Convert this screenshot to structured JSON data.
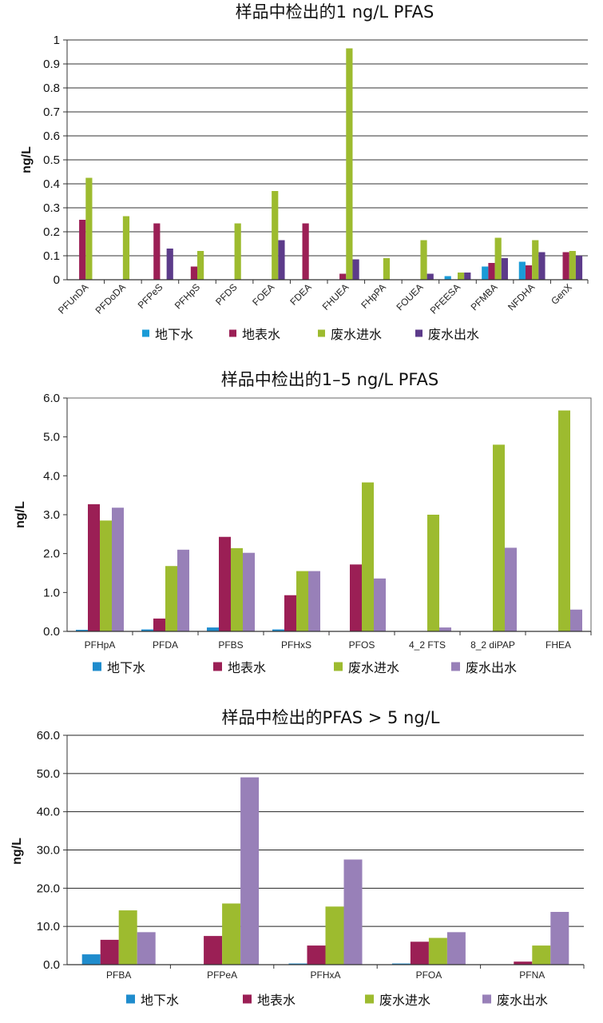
{
  "colors": {
    "groundwater_c1": "#1a9bd7",
    "groundwater": "#1f8ccd",
    "surface": "#9b1f55",
    "influent": "#9dbb2f",
    "effluent_c1": "#5c3b8a",
    "effluent": "#9880b8"
  },
  "chart_data": [
    {
      "type": "bar",
      "title": "样品中检出的1 ng/L PFAS",
      "ylabel": "ng/L",
      "ylim": [
        0,
        1
      ],
      "yticks": [
        "0",
        "0.1",
        "0.2",
        "0.3",
        "0.4",
        "0.5",
        "0.6",
        "0.7",
        "0.8",
        "0.9",
        "1"
      ],
      "grid": true,
      "legend": "bottom",
      "categories": [
        "PFUnDA",
        "PFDoDA",
        "PFPeS",
        "PFHpS",
        "PFDS",
        "FOEA",
        "FDEA",
        "FHUEA",
        "FHpPA",
        "FOUEA",
        "PFEESA",
        "PFMBA",
        "NFDHA",
        "GenX"
      ],
      "series": [
        {
          "name": "地下水",
          "values": [
            0,
            0,
            0,
            0,
            0,
            0,
            0,
            0,
            0,
            0,
            0.015,
            0.055,
            0.075,
            0
          ]
        },
        {
          "name": "地表水",
          "values": [
            0.25,
            0,
            0.235,
            0.055,
            0,
            0,
            0.235,
            0.025,
            0,
            0,
            0,
            0.07,
            0.06,
            0.115
          ]
        },
        {
          "name": "废水进水",
          "values": [
            0.425,
            0.265,
            0,
            0.12,
            0.235,
            0.37,
            0,
            0.965,
            0.09,
            0.165,
            0.03,
            0.175,
            0.165,
            0.12
          ]
        },
        {
          "name": "废水出水",
          "values": [
            0,
            0,
            0.13,
            0,
            0,
            0.165,
            0,
            0.085,
            0,
            0.025,
            0.03,
            0.09,
            0.115,
            0.1
          ]
        }
      ]
    },
    {
      "type": "bar",
      "title": "样品中检出的1–5 ng/L PFAS",
      "ylabel": "ng/L",
      "ylim": [
        0,
        6
      ],
      "yticks": [
        "0.0",
        "1.0",
        "2.0",
        "3.0",
        "4.0",
        "5.0",
        "6.0"
      ],
      "grid": false,
      "legend": "bottom",
      "categories": [
        "PFHpA",
        "PFDA",
        "PFBS",
        "PFHxS",
        "PFOS",
        "4_2 FTS",
        "8_2 diPAP",
        "FHEA"
      ],
      "series": [
        {
          "name": "地下水",
          "values": [
            0.04,
            0.05,
            0.1,
            0.05,
            0,
            0,
            0,
            0
          ]
        },
        {
          "name": "地表水",
          "values": [
            3.27,
            0.33,
            2.43,
            0.93,
            1.72,
            0,
            0,
            0
          ]
        },
        {
          "name": "废水进水",
          "values": [
            2.85,
            1.68,
            2.14,
            1.55,
            3.83,
            3.0,
            4.8,
            5.68
          ]
        },
        {
          "name": "废水出水",
          "values": [
            3.18,
            2.1,
            2.02,
            1.55,
            1.36,
            0.1,
            2.15,
            0.56
          ]
        }
      ]
    },
    {
      "type": "bar",
      "title": "样品中检出的PFAS > 5 ng/L",
      "ylabel": "ng/L",
      "ylim": [
        0,
        60
      ],
      "yticks": [
        "0.0",
        "10.0",
        "20.0",
        "30.0",
        "40.0",
        "50.0",
        "60.0"
      ],
      "grid": true,
      "legend": "bottom",
      "categories": [
        "PFBA",
        "PFPeA",
        "PFHxA",
        "PFOA",
        "PFNA"
      ],
      "series": [
        {
          "name": "地下水",
          "values": [
            2.7,
            0,
            0.3,
            0.3,
            0
          ]
        },
        {
          "name": "地表水",
          "values": [
            6.5,
            7.5,
            5.0,
            6.0,
            0.8
          ]
        },
        {
          "name": "废水进水",
          "values": [
            14.2,
            16.0,
            15.2,
            7.0,
            5.0
          ]
        },
        {
          "name": "废水出水",
          "values": [
            8.5,
            49.0,
            27.5,
            8.5,
            13.8
          ]
        }
      ]
    }
  ]
}
